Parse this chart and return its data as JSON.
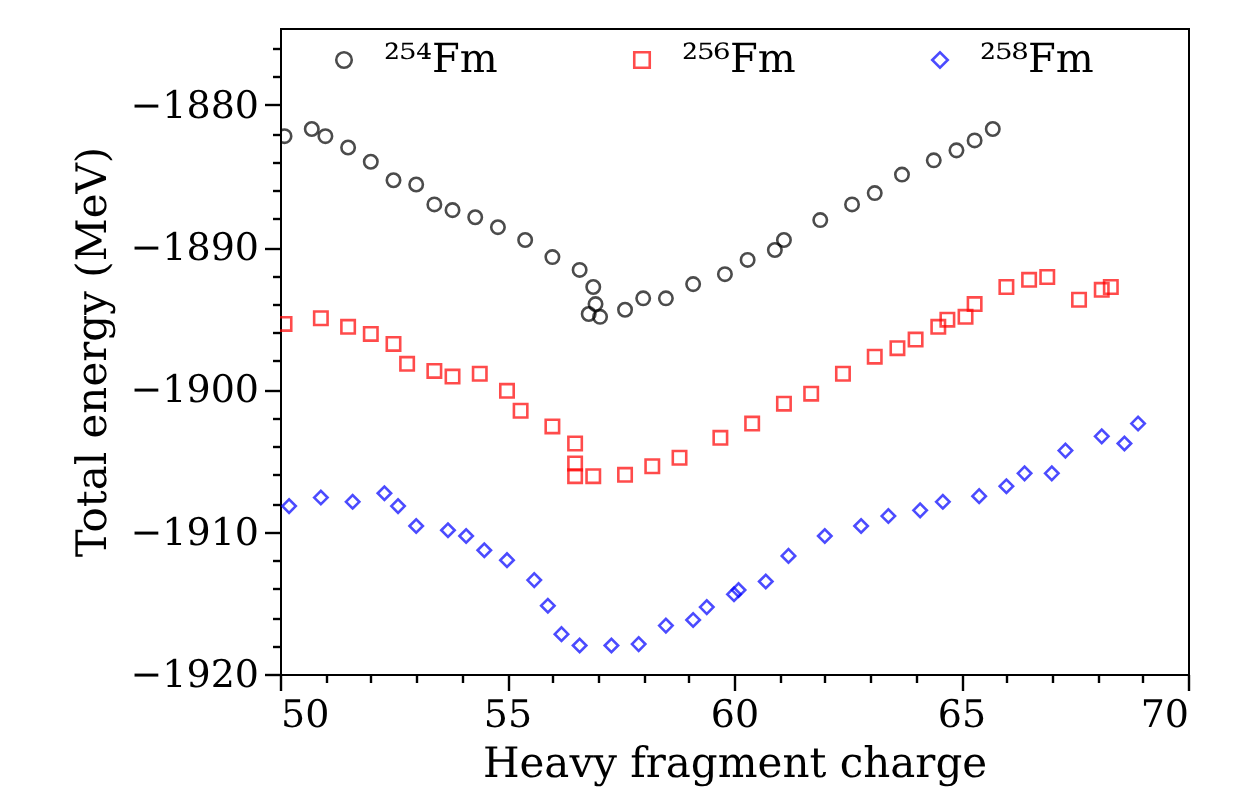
{
  "chart_data": {
    "type": "scatter",
    "xlabel": "Heavy fragment charge",
    "ylabel": "Total energy (MeV)",
    "xlim": [
      50,
      70
    ],
    "ylim": [
      -1920,
      -1874.6
    ],
    "xticks": [
      50,
      {
        "value": 51,
        "label": null
      },
      {
        "value": 52,
        "label": null
      },
      {
        "value": 53,
        "label": null
      },
      {
        "value": 54,
        "label": null
      },
      55,
      {
        "value": 56,
        "label": null
      },
      {
        "value": 57,
        "label": null
      },
      {
        "value": 58,
        "label": null
      },
      {
        "value": 59,
        "label": null
      },
      60,
      {
        "value": 61,
        "label": null
      },
      {
        "value": 62,
        "label": null
      },
      {
        "value": 63,
        "label": null
      },
      {
        "value": 64,
        "label": null
      },
      65,
      {
        "value": 66,
        "label": null
      },
      {
        "value": 67,
        "label": null
      },
      {
        "value": 68,
        "label": null
      },
      {
        "value": 69,
        "label": null
      },
      70
    ],
    "yticks": [
      -1920,
      {
        "value": -1918,
        "label": null
      },
      {
        "value": -1916,
        "label": null
      },
      {
        "value": -1914,
        "label": null
      },
      {
        "value": -1912,
        "label": null
      },
      -1910,
      {
        "value": -1908,
        "label": null
      },
      {
        "value": -1906,
        "label": null
      },
      {
        "value": -1904,
        "label": null
      },
      {
        "value": -1902,
        "label": null
      },
      -1900,
      {
        "value": -1898,
        "label": null
      },
      {
        "value": -1896,
        "label": null
      },
      {
        "value": -1894,
        "label": null
      },
      {
        "value": -1892,
        "label": null
      },
      -1890,
      {
        "value": -1888,
        "label": null
      },
      {
        "value": -1886,
        "label": null
      },
      {
        "value": -1884,
        "label": null
      },
      {
        "value": -1882,
        "label": null
      },
      -1880,
      {
        "value": -1878,
        "label": null
      },
      {
        "value": -1876,
        "label": null
      }
    ],
    "legend": "top",
    "grid": false,
    "series": [
      {
        "name": "²⁵⁴Fm",
        "color": "#000000",
        "marker": "circle",
        "x": [
          50.1,
          50.7,
          51.0,
          51.5,
          52.0,
          52.5,
          53.0,
          53.4,
          53.8,
          54.3,
          54.8,
          55.4,
          56.0,
          56.6,
          56.9,
          56.95,
          56.8,
          57.05,
          57.6,
          58.0,
          58.5,
          59.1,
          59.8,
          60.3,
          60.9,
          61.1,
          61.9,
          62.6,
          63.1,
          63.7,
          64.4,
          64.9,
          65.3,
          65.7
        ],
        "values": [
          -1882.2,
          -1881.7,
          -1882.2,
          -1883.0,
          -1884.0,
          -1885.3,
          -1885.6,
          -1887.0,
          -1887.4,
          -1887.9,
          -1888.6,
          -1889.5,
          -1890.7,
          -1891.6,
          -1892.8,
          -1894.0,
          -1894.7,
          -1894.9,
          -1894.4,
          -1893.6,
          -1893.6,
          -1892.6,
          -1891.9,
          -1890.9,
          -1890.2,
          -1889.5,
          -1888.1,
          -1887.0,
          -1886.2,
          -1884.9,
          -1883.9,
          -1883.2,
          -1882.5,
          -1881.7
        ]
      },
      {
        "name": "²⁵⁶Fm",
        "color": "#ff0000",
        "marker": "square",
        "x": [
          50.1,
          50.9,
          51.5,
          52.0,
          52.5,
          52.8,
          53.4,
          53.8,
          54.4,
          55.0,
          55.3,
          56.0,
          56.5,
          56.5,
          56.5,
          56.9,
          57.6,
          58.2,
          58.8,
          59.7,
          60.4,
          61.1,
          61.7,
          62.4,
          63.1,
          63.6,
          64.0,
          64.5,
          64.7,
          65.1,
          65.3,
          66.0,
          66.5,
          66.9,
          67.6,
          68.1,
          68.3
        ],
        "values": [
          -1895.4,
          -1895.0,
          -1895.6,
          -1896.1,
          -1896.8,
          -1898.2,
          -1898.7,
          -1899.1,
          -1898.9,
          -1900.1,
          -1901.5,
          -1902.6,
          -1903.8,
          -1905.2,
          -1906.1,
          -1906.1,
          -1906.0,
          -1905.4,
          -1904.8,
          -1903.4,
          -1902.4,
          -1901.0,
          -1900.3,
          -1898.9,
          -1897.7,
          -1897.1,
          -1896.5,
          -1895.6,
          -1895.1,
          -1894.9,
          -1894.0,
          -1892.8,
          -1892.3,
          -1892.1,
          -1893.7,
          -1893.0,
          -1892.8
        ]
      },
      {
        "name": "²⁵⁸Fm",
        "color": "#0000ff",
        "marker": "diamond",
        "x": [
          50.2,
          50.9,
          51.6,
          52.3,
          52.6,
          53.0,
          53.7,
          54.1,
          54.5,
          55.0,
          55.6,
          55.9,
          56.2,
          56.6,
          57.3,
          57.9,
          58.5,
          59.1,
          59.4,
          60.0,
          60.1,
          60.7,
          61.2,
          62.0,
          62.8,
          63.4,
          64.1,
          64.6,
          65.4,
          66.0,
          66.4,
          67.0,
          67.3,
          68.1,
          68.6,
          68.9
        ],
        "values": [
          -1908.2,
          -1907.6,
          -1907.9,
          -1907.3,
          -1908.2,
          -1909.6,
          -1909.9,
          -1910.3,
          -1911.3,
          -1912.0,
          -1913.4,
          -1915.2,
          -1917.2,
          -1918.0,
          -1918.0,
          -1917.9,
          -1916.6,
          -1916.2,
          -1915.3,
          -1914.4,
          -1914.1,
          -1913.5,
          -1911.7,
          -1910.3,
          -1909.6,
          -1908.9,
          -1908.5,
          -1907.9,
          -1907.5,
          -1906.8,
          -1905.9,
          -1905.9,
          -1904.3,
          -1903.3,
          -1903.8,
          -1902.4
        ]
      }
    ]
  }
}
